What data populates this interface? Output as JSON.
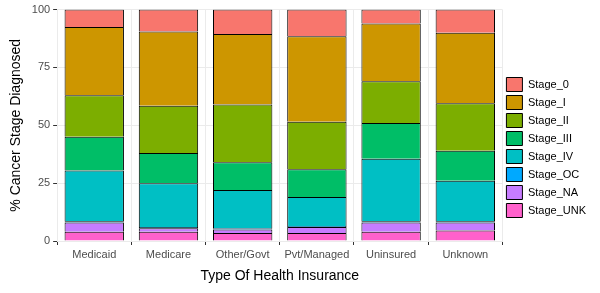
{
  "chart_data": {
    "type": "bar",
    "stacked": true,
    "x_label": "Type Of Health Insurance",
    "y_label": "% Cancer Stage Diagnosed",
    "categories": [
      "Medicaid",
      "Medicare",
      "Other/Govt",
      "Pvt/Managed",
      "Uninsured",
      "Unknown"
    ],
    "series": [
      {
        "name": "Stage_0",
        "color": "#F8766D",
        "values": [
          7.5,
          9.5,
          10.5,
          11.5,
          6,
          10
        ]
      },
      {
        "name": "Stage_I",
        "color": "#CD9600",
        "values": [
          29.5,
          32,
          30.5,
          37,
          25,
          30.5
        ]
      },
      {
        "name": "Stage_II",
        "color": "#7CAE00",
        "values": [
          18,
          20.5,
          25,
          20.5,
          18,
          20.5
        ]
      },
      {
        "name": "Stage_III",
        "color": "#00BE67",
        "values": [
          14.5,
          13,
          12,
          12,
          15.5,
          13
        ]
      },
      {
        "name": "Stage_IV",
        "color": "#00BFC4",
        "values": [
          22,
          19,
          16.5,
          12.5,
          27,
          17.5
        ]
      },
      {
        "name": "Stage_OC",
        "color": "#00A9FF",
        "values": [
          0.5,
          0.5,
          0.5,
          0.5,
          0.5,
          0.5
        ]
      },
      {
        "name": "Stage_NA",
        "color": "#C77CFF",
        "values": [
          4,
          1.5,
          1.5,
          2.5,
          4,
          3.5
        ]
      },
      {
        "name": "Stage_UNK",
        "color": "#FF61CC",
        "values": [
          4,
          4,
          3.5,
          3.5,
          4,
          4.5
        ]
      }
    ],
    "ylim": [
      0,
      100
    ],
    "yticks": [
      0,
      25,
      50,
      75,
      100
    ],
    "grid": true,
    "legend": "right"
  }
}
